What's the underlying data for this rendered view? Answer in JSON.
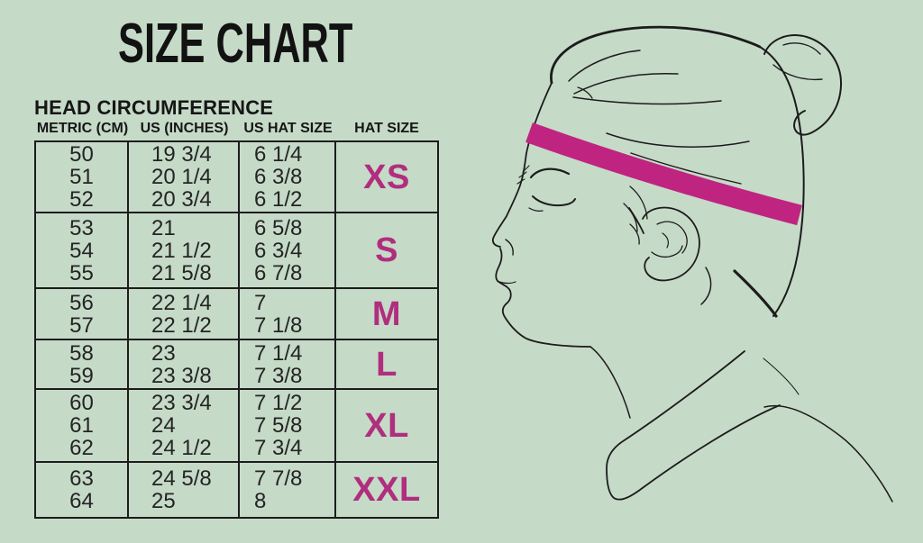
{
  "title": "SIZE CHART",
  "colors": {
    "background": "#c6dac8",
    "ink": "#1c1c1c",
    "size_label_pink": "#b02e7e",
    "band_pink": "#bf2480"
  },
  "table": {
    "subtitle": "HEAD CIRCUMFERENCE",
    "columns": [
      "METRIC (CM)",
      "US (INCHES)",
      "US HAT SIZE",
      "HAT SIZE"
    ],
    "rows": [
      {
        "metric": [
          "50",
          "51",
          "52"
        ],
        "us_inches": [
          "19 3/4",
          "20 1/4",
          "20 3/4"
        ],
        "us_hat_size": [
          "6 1/4",
          "6 3/8",
          "6 1/2"
        ],
        "hat_size": "XS"
      },
      {
        "metric": [
          "53",
          "54",
          "55"
        ],
        "us_inches": [
          "21",
          "21 1/2",
          "21 5/8"
        ],
        "us_hat_size": [
          "6 5/8",
          "6 3/4",
          "6 7/8"
        ],
        "hat_size": "S"
      },
      {
        "metric": [
          "56",
          "57"
        ],
        "us_inches": [
          "22 1/4",
          "22 1/2"
        ],
        "us_hat_size": [
          "7",
          "7 1/8"
        ],
        "hat_size": "M"
      },
      {
        "metric": [
          "58",
          "59"
        ],
        "us_inches": [
          "23",
          "23 3/8"
        ],
        "us_hat_size": [
          "7 1/4",
          "7 3/8"
        ],
        "hat_size": "L"
      },
      {
        "metric": [
          "60",
          "61",
          "62"
        ],
        "us_inches": [
          "23 3/4",
          "24",
          "24 1/2"
        ],
        "us_hat_size": [
          "7 1/2",
          "7 5/8",
          "7 3/4"
        ],
        "hat_size": "XL"
      },
      {
        "metric": [
          "63",
          "64"
        ],
        "us_inches": [
          "24 5/8",
          "25"
        ],
        "us_hat_size": [
          "7 7/8",
          "8"
        ],
        "hat_size": "XXL"
      }
    ]
  },
  "illustration": {
    "icon": "head-profile-measuring-band-icon",
    "description": "Line drawing of a woman's head in profile with hair bun, wearing a measuring band around the forehead"
  }
}
